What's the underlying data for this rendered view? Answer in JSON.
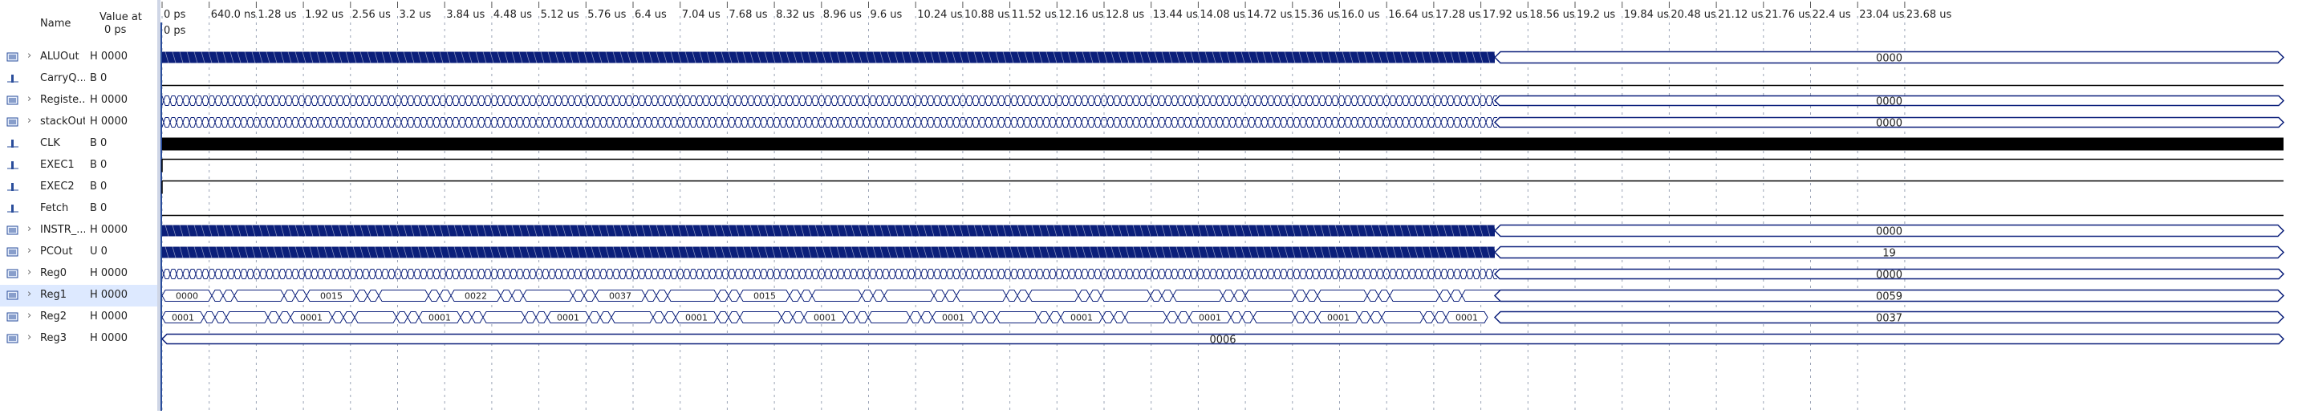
{
  "header": {
    "name_label": "Name",
    "value_label": "Value at",
    "value_time": "0 ps"
  },
  "cursor_label": "0 ps",
  "time_ticks": [
    "0 ps",
    "640.0 ns",
    "1.28 us",
    "1.92 us",
    "2.56 us",
    "3.2 us",
    "3.84 us",
    "4.48 us",
    "5.12 us",
    "5.76 us",
    "6.4 us",
    "7.04 us",
    "7.68 us",
    "8.32 us",
    "8.96 us",
    "9.6 us",
    "10.24 us",
    "10.88 us",
    "11.52 us",
    "12.16 us",
    "12.8 us",
    "13.44 us",
    "14.08 us",
    "14.72 us",
    "15.36 us",
    "16.0 us",
    "16.64 us",
    "17.28 us",
    "17.92 us",
    "18.56 us",
    "19.2 us",
    "19.84 us",
    "20.48 us",
    "21.12 us",
    "21.76 us",
    "22.4 us",
    "23.04 us",
    "23.68 us"
  ],
  "signals": [
    {
      "name": "ALUOut",
      "value": "H 0000",
      "expandable": true,
      "kind": "bus",
      "style": "dense",
      "end_value": "0000"
    },
    {
      "name": "CarryQ...",
      "value": "B 0",
      "expandable": false,
      "kind": "bit",
      "style": "low"
    },
    {
      "name": "Registe...",
      "value": "H 0000",
      "expandable": true,
      "kind": "bus",
      "style": "medium",
      "end_value": "0000"
    },
    {
      "name": "stackOut",
      "value": "H 0000",
      "expandable": true,
      "kind": "bus",
      "style": "medium",
      "end_value": "0000"
    },
    {
      "name": "CLK",
      "value": "B 0",
      "expandable": false,
      "kind": "bit",
      "style": "clock"
    },
    {
      "name": "EXEC1",
      "value": "B 0",
      "expandable": false,
      "kind": "bit",
      "style": "high"
    },
    {
      "name": "EXEC2",
      "value": "B 0",
      "expandable": false,
      "kind": "bit",
      "style": "high"
    },
    {
      "name": "Fetch",
      "value": "B 0",
      "expandable": false,
      "kind": "bit",
      "style": "low"
    },
    {
      "name": "INSTR_...",
      "value": "H 0000",
      "expandable": true,
      "kind": "bus",
      "style": "dense",
      "end_value": "0000"
    },
    {
      "name": "PCOut",
      "value": "U 0",
      "expandable": true,
      "kind": "bus",
      "style": "dense",
      "end_value": "19"
    },
    {
      "name": "Reg0",
      "value": "H 0000",
      "expandable": true,
      "kind": "bus",
      "style": "medium",
      "end_value": "0000"
    },
    {
      "name": "Reg1",
      "value": "H 0000",
      "expandable": true,
      "kind": "bus",
      "style": "labeled",
      "end_value": "0059",
      "selected": true,
      "labels": [
        "0000",
        "0015",
        "0022",
        "0037",
        "0015"
      ]
    },
    {
      "name": "Reg2",
      "value": "H 0000",
      "expandable": true,
      "kind": "bus",
      "style": "labeled2",
      "end_value": "0037",
      "labels": [
        "0001",
        "0001",
        "0001",
        "0001",
        "0001",
        "0001",
        "0001",
        "0001",
        "0001",
        "0001",
        "0001",
        "0001",
        "0001"
      ]
    },
    {
      "name": "Reg3",
      "value": "H 0000",
      "expandable": true,
      "kind": "bus",
      "style": "constant",
      "end_value": "0006"
    }
  ],
  "colors": {
    "bus": "#0b1f7a",
    "bit": "#000000",
    "grid": "#9aa3b5",
    "divider": "#cfd6e6",
    "selected_row": "#dde9ff"
  }
}
